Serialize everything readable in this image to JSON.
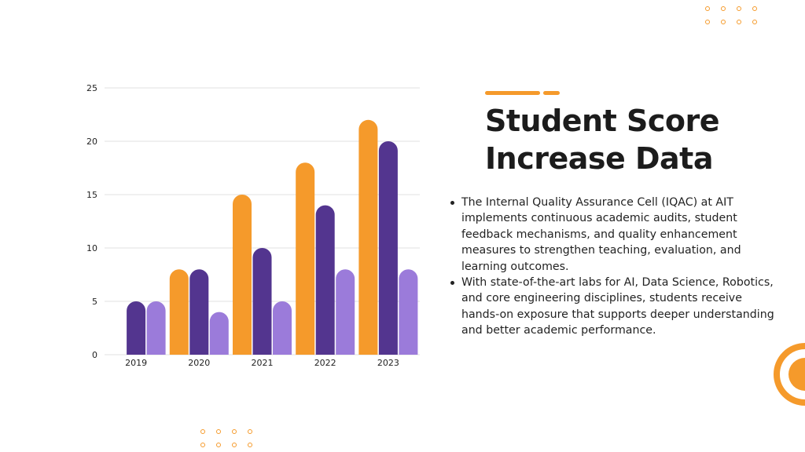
{
  "colors": {
    "orange": "#F59A2B",
    "dark_purple": "#53358F",
    "light_purple": "#9B7BDA",
    "gridline": "#E2E2E2",
    "text": "#1E1E1E"
  },
  "slide": {
    "title": "Student Score Increase Data",
    "bullets": [
      "The Internal Quality Assurance Cell (IQAC) at AIT implements continuous academic audits, student feedback mechanisms, and quality enhancement measures to strengthen teaching, evaluation, and learning outcomes.",
      "With state-of-the-art labs for AI, Data Science, Robotics, and core engineering disciplines, students receive hands-on exposure that supports deeper understanding and better academic performance."
    ]
  },
  "chart_data": {
    "type": "bar",
    "categories": [
      "2019",
      "2020",
      "2021",
      "2022",
      "2023"
    ],
    "series": [
      {
        "color": "#F59A2B",
        "values": [
          null,
          8,
          15,
          18,
          22
        ]
      },
      {
        "color": "#53358F",
        "values": [
          5,
          8,
          10,
          14,
          20
        ]
      },
      {
        "color": "#9B7BDA",
        "values": [
          5,
          4,
          5,
          8,
          8
        ]
      }
    ],
    "ylim": [
      0,
      25
    ],
    "yticks": [
      0,
      5,
      10,
      15,
      20,
      25
    ],
    "grid": true,
    "legend": "none"
  }
}
